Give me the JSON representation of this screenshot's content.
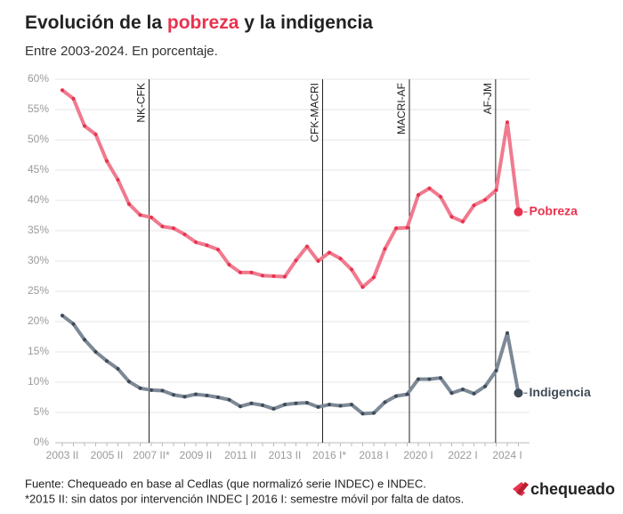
{
  "chart_data": {
    "type": "line",
    "title": [
      "Evolución de la",
      "pobreza",
      "y la indigencia"
    ],
    "subtitle": "Entre 2003-2024. En porcentaje.",
    "categories": [
      "2003 II",
      null,
      null,
      null,
      "2005 II",
      null,
      null,
      null,
      "2007 II*",
      null,
      null,
      null,
      "2009 II",
      null,
      null,
      null,
      "2011 II",
      null,
      null,
      null,
      "2013 II",
      null,
      null,
      null,
      "2016 I*",
      null,
      null,
      null,
      "2018 I",
      null,
      null,
      null,
      "2020 I",
      null,
      null,
      null,
      "2022 I",
      null,
      null,
      null,
      "2024 I",
      null
    ],
    "series": [
      {
        "name": "Pobreza",
        "color": "#f07a8e",
        "dot_color": "#e8334f",
        "values": [
          58.2,
          56.8,
          52.3,
          50.9,
          46.5,
          43.4,
          39.4,
          37.6,
          37.2,
          35.7,
          35.4,
          34.4,
          33.1,
          32.6,
          31.9,
          29.4,
          28.1,
          28.1,
          27.6,
          27.5,
          27.4,
          30.1,
          32.4,
          30.0,
          31.4,
          30.4,
          28.6,
          25.7,
          27.3,
          32.0,
          35.4,
          35.5,
          40.9,
          42.0,
          40.6,
          37.3,
          36.5,
          39.2,
          40.1,
          41.7,
          52.9,
          38.1
        ]
      },
      {
        "name": "Indigencia",
        "color": "#7d8996",
        "dot_color": "#3e4a57",
        "values": [
          21.0,
          19.6,
          17.0,
          15.0,
          13.5,
          12.2,
          10.1,
          9.0,
          8.7,
          8.6,
          7.9,
          7.6,
          8.0,
          7.8,
          7.5,
          7.1,
          6.0,
          6.5,
          6.2,
          5.6,
          6.3,
          6.5,
          6.6,
          5.9,
          6.3,
          6.1,
          6.3,
          4.8,
          4.9,
          6.7,
          7.7,
          8.0,
          10.5,
          10.5,
          10.7,
          8.2,
          8.8,
          8.1,
          9.3,
          11.9,
          18.1,
          8.2
        ]
      }
    ],
    "annotations": [
      {
        "label": "NK-CFK",
        "at": 7.8
      },
      {
        "label": "CFK-MACRI",
        "at": 23.4
      },
      {
        "label": "MACRI-AF",
        "at": 31.2
      },
      {
        "label": "AF-JM",
        "at": 38.95
      }
    ],
    "ylim": [
      0,
      60
    ],
    "yticks": [
      {
        "value": 0,
        "label": "0%"
      },
      {
        "value": 5,
        "label": "5%"
      },
      {
        "value": 10,
        "label": "10%"
      },
      {
        "value": 15,
        "label": "15%"
      },
      {
        "value": 20,
        "label": "20%"
      },
      {
        "value": 25,
        "label": "25%"
      },
      {
        "value": 30,
        "label": "30%"
      },
      {
        "value": 35,
        "label": "35%"
      },
      {
        "value": 40,
        "label": "40%"
      },
      {
        "value": 45,
        "label": "45%"
      },
      {
        "value": 50,
        "label": "50%"
      },
      {
        "value": 55,
        "label": "55%"
      },
      {
        "value": 60,
        "label": "60%"
      }
    ],
    "grid": true,
    "source": "Fuente: Chequeado en base al Cedlas (que normalizó serie INDEC) e INDEC.",
    "note": "*2015 II: sin datos por intervención INDEC | 2016 I: semestre móvil por falta de datos.",
    "logo": "chequeado"
  }
}
